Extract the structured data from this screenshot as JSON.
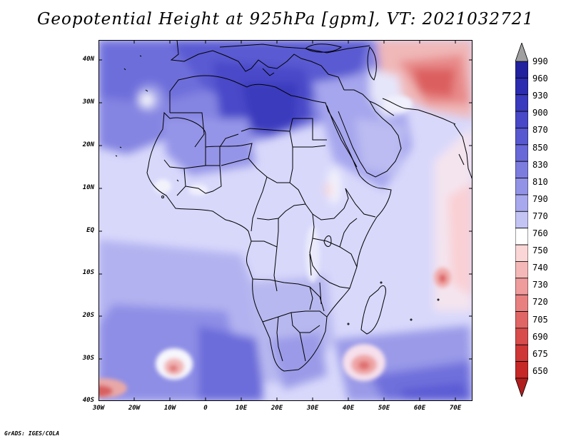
{
  "title": "Geopotential Height at 925hPa [gpm], VT: 2021032721",
  "credit": "GrADS: IGES/COLA",
  "axes": {
    "lat_labels": [
      "40N",
      "30N",
      "20N",
      "10N",
      "EQ",
      "10S",
      "20S",
      "30S",
      "40S"
    ],
    "lon_labels": [
      "30W",
      "20W",
      "10W",
      "0",
      "10E",
      "20E",
      "30E",
      "40E",
      "50E",
      "60E",
      "70E"
    ],
    "lat_range": [
      -40,
      45
    ],
    "lon_range": [
      -30,
      75
    ]
  },
  "colorbar": {
    "levels": [
      "990",
      "960",
      "930",
      "900",
      "870",
      "850",
      "830",
      "810",
      "790",
      "770",
      "760",
      "750",
      "740",
      "730",
      "720",
      "705",
      "690",
      "675",
      "650"
    ],
    "colors": [
      "#22229e",
      "#2c2cb0",
      "#3a3abe",
      "#4848c8",
      "#5858d0",
      "#6868d8",
      "#7c7cdf",
      "#9292e6",
      "#a8a8ee",
      "#c4c4f4",
      "#ffffff",
      "#fbd6d6",
      "#f5b8b8",
      "#ef9c9c",
      "#e88080",
      "#e06666",
      "#d84c4c",
      "#cf3636",
      "#c62828"
    ],
    "top_arrow_color": "#a0a0a0",
    "bottom_arrow_color": "#b01e1e"
  },
  "map_features": {
    "background_color": "#d8d8fb"
  }
}
